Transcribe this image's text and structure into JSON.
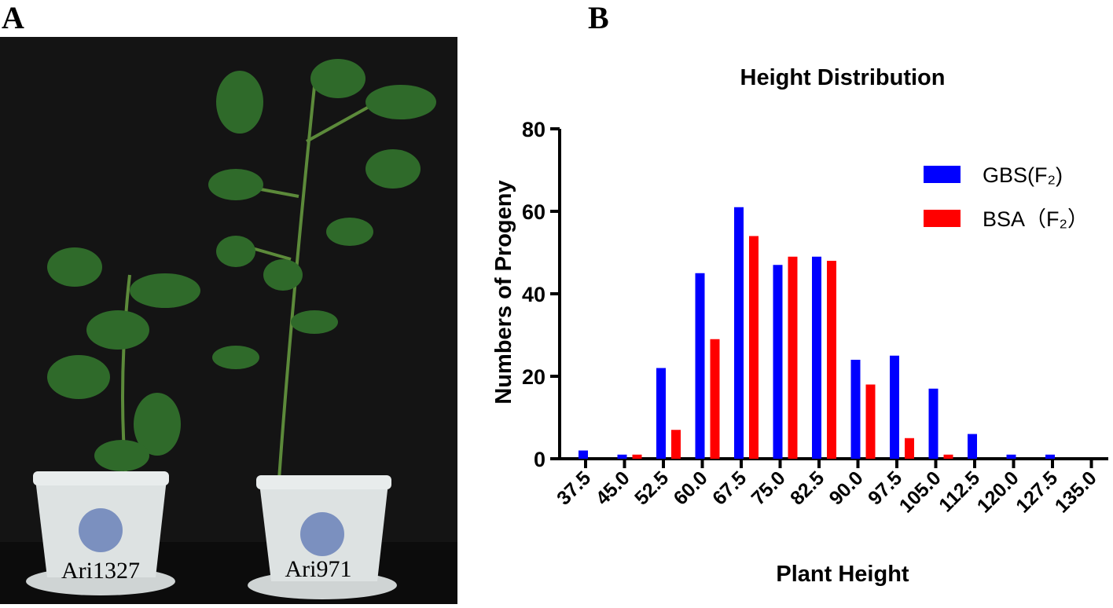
{
  "panels": {
    "a": "A",
    "b": "B"
  },
  "photo": {
    "labels": [
      "Ari1327",
      "Ari971"
    ]
  },
  "chart_data": {
    "type": "bar",
    "title": "Height Distribution",
    "x_label": "Plant Height",
    "y_label": "Numbers of Progeny",
    "categories": [
      "37.5",
      "45.0",
      "52.5",
      "60.0",
      "67.5",
      "75.0",
      "82.5",
      "90.0",
      "97.5",
      "105.0",
      "112.5",
      "120.0",
      "127.5",
      "135.0"
    ],
    "series": [
      {
        "name": "GBS(F₂)",
        "color": "#0000ff",
        "values": [
          2,
          1,
          22,
          45,
          61,
          47,
          49,
          24,
          25,
          17,
          6,
          1,
          1,
          0
        ]
      },
      {
        "name": "BSA（F₂）",
        "color": "#ff0000",
        "values": [
          0,
          1,
          7,
          29,
          54,
          49,
          48,
          18,
          5,
          1,
          0,
          0,
          0,
          0
        ]
      }
    ],
    "ylim": [
      0,
      80
    ],
    "yticks": [
      0,
      20,
      40,
      60,
      80
    ],
    "legend": "upper right"
  }
}
